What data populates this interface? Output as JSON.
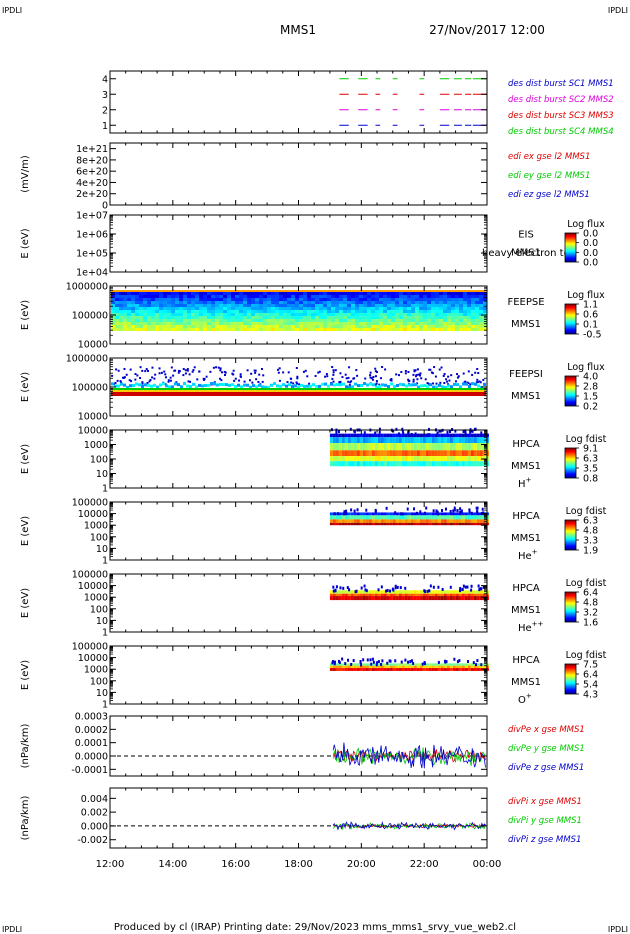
{
  "header": {
    "corner_tl": "IPDLI",
    "corner_tr": "IPDLI",
    "corner_bl": "IPDLI",
    "corner_br": "IPDLI",
    "mission": "MMS1",
    "datetime": "27/Nov/2017 12:00"
  },
  "footer": {
    "text": "Produced by cl (IRAP)   Printing date: 29/Nov/2023   mms_mms1_srvy_vue_web2.cl"
  },
  "colors": {
    "black": "#000000",
    "red": "#dd0000",
    "green": "#00cc00",
    "blue": "#0000cc",
    "magenta": "#dd00dd",
    "navy": "#0000aa"
  },
  "chart_data": {
    "type": "multi-panel time series / spectrogram",
    "x_axis": {
      "ticks": [
        "12:00",
        "14:00",
        "16:00",
        "18:00",
        "20:00",
        "22:00",
        "00:00"
      ],
      "range_hours": [
        12,
        24
      ]
    },
    "panels": [
      {
        "id": "burst",
        "type": "availability",
        "ylim": [
          0.5,
          4.5
        ],
        "ticks": [
          "1",
          "2",
          "3",
          "4"
        ],
        "legend": [
          {
            "text": "des dist burst SC1 MMS1",
            "color": "#0000cc"
          },
          {
            "text": "des dist burst SC2 MMS2",
            "color": "#dd00dd"
          },
          {
            "text": "des dist burst SC3 MMS3",
            "color": "#dd0000"
          },
          {
            "text": "des dist burst SC4 MMS4",
            "color": "#00cc00"
          }
        ],
        "segments": [
          [
            19.3,
            19.6
          ],
          [
            19.9,
            20.2
          ],
          [
            20.45,
            20.6
          ],
          [
            21.0,
            21.15
          ],
          [
            21.85,
            22.0
          ],
          [
            22.5,
            22.8
          ],
          [
            22.95,
            23.2
          ],
          [
            23.3,
            23.5
          ],
          [
            23.55,
            24.0
          ]
        ]
      },
      {
        "id": "edi",
        "type": "line",
        "ylabel": "(mV/m)",
        "ylim": [
          0,
          1.1e+21
        ],
        "ticks": [
          "1e+21",
          "8e+20",
          "6e+20",
          "4e+20",
          "2e+20",
          "0"
        ],
        "tick_values": [
          1e+21,
          8e+20,
          6e+20,
          4e+20,
          2e+20,
          0
        ],
        "legend": [
          {
            "text": "edi ex gse l2 MMS1",
            "color": "#dd0000"
          },
          {
            "text": "edi ey gse l2 MMS1",
            "color": "#00cc00"
          },
          {
            "text": "edi ez gse l2 MMS1",
            "color": "#0000cc"
          }
        ]
      },
      {
        "id": "eis",
        "type": "spectrogram-empty",
        "ylabel": "E (eV)",
        "ticks": [
          "1e+07",
          "1e+06",
          "1e+05",
          "1e+04"
        ],
        "log_range": [
          4,
          7
        ],
        "side": [
          "EIS",
          "MMS1"
        ],
        "overlay": "heavy electron to",
        "cb_title": "Log flux",
        "cb_ticks": [
          "0.0",
          "0.0",
          "0.0",
          "0.0"
        ]
      },
      {
        "id": "feepse",
        "type": "spectrogram",
        "ylabel": "E (eV)",
        "ticks": [
          "1000000",
          "100000",
          "10000"
        ],
        "log_range": [
          4,
          6
        ],
        "side": [
          "FEEPSE",
          "MMS1"
        ],
        "cb_title": "Log flux",
        "cb_ticks": [
          "1.1",
          "0.6",
          "0.1",
          "-0.5"
        ]
      },
      {
        "id": "feepsi",
        "type": "spectrogram",
        "ylabel": "E (eV)",
        "ticks": [
          "1000000",
          "100000",
          "10000"
        ],
        "log_range": [
          4,
          6
        ],
        "side": [
          "FEEPSI",
          "MMS1"
        ],
        "cb_title": "Log flux",
        "cb_ticks": [
          "4.0",
          "2.8",
          "1.5",
          "0.2"
        ]
      },
      {
        "id": "hpca_h",
        "type": "spectrogram",
        "ylabel": "E (eV)",
        "ticks": [
          "10000",
          "1000",
          "100",
          "10",
          "1"
        ],
        "log_range": [
          0,
          4
        ],
        "side": [
          "HPCA",
          "MMS1"
        ],
        "species": "H",
        "species_sup": "+",
        "cb_title": "Log fdist",
        "cb_ticks": [
          "9.1",
          "6.3",
          "3.5",
          "0.8"
        ]
      },
      {
        "id": "hpca_he",
        "type": "spectrogram",
        "ylabel": "E (eV)",
        "ticks": [
          "100000",
          "10000",
          "1000",
          "100",
          "10",
          "1"
        ],
        "log_range": [
          0,
          5
        ],
        "side": [
          "HPCA",
          "MMS1"
        ],
        "species": "He",
        "species_sup": "+",
        "cb_title": "Log fdist",
        "cb_ticks": [
          "6.3",
          "4.8",
          "3.3",
          "1.9"
        ]
      },
      {
        "id": "hpca_he2",
        "type": "spectrogram",
        "ylabel": "E (eV)",
        "ticks": [
          "100000",
          "10000",
          "1000",
          "100",
          "10",
          "1"
        ],
        "log_range": [
          0,
          5
        ],
        "side": [
          "HPCA",
          "MMS1"
        ],
        "species": "He",
        "species_sup": "++",
        "cb_title": "Log fdist",
        "cb_ticks": [
          "6.4",
          "4.8",
          "3.2",
          "1.6"
        ]
      },
      {
        "id": "hpca_o",
        "type": "spectrogram",
        "ylabel": "E (eV)",
        "ticks": [
          "100000",
          "10000",
          "1000",
          "100",
          "10",
          "1"
        ],
        "log_range": [
          0,
          5
        ],
        "side": [
          "HPCA",
          "MMS1"
        ],
        "species": "O",
        "species_sup": "+",
        "cb_title": "Log fdist",
        "cb_ticks": [
          "7.5",
          "6.4",
          "5.4",
          "4.3"
        ]
      },
      {
        "id": "divpe",
        "type": "line",
        "ylabel": "(nPa/km)",
        "ylim": [
          -0.00015,
          0.0003
        ],
        "ticks": [
          "0.0003",
          "0.0002",
          "0.0001",
          "0.0000",
          "-0.0001"
        ],
        "tick_values": [
          0.0003,
          0.0002,
          0.0001,
          0,
          -0.0001
        ],
        "data_start_hour": 19.1,
        "amplitude": 9e-05,
        "legend": [
          {
            "text": "divPe x gse MMS1",
            "color": "#dd0000"
          },
          {
            "text": "divPe y gse MMS1",
            "color": "#00cc00"
          },
          {
            "text": "divPe z gse MMS1",
            "color": "#0000cc"
          }
        ]
      },
      {
        "id": "divpi",
        "type": "line",
        "ylabel": "(nPa/km)",
        "ylim": [
          -0.0032,
          0.0055
        ],
        "ticks": [
          "0.004",
          "0.002",
          "0.000",
          "-0.002"
        ],
        "tick_values": [
          0.004,
          0.002,
          0,
          -0.002
        ],
        "data_start_hour": 19.1,
        "amplitude": 0.0005,
        "legend": [
          {
            "text": "divPi x gse MMS1",
            "color": "#dd0000"
          },
          {
            "text": "divPi y gse MMS1",
            "color": "#00cc00"
          },
          {
            "text": "divPi z gse MMS1",
            "color": "#0000cc"
          }
        ]
      }
    ]
  }
}
